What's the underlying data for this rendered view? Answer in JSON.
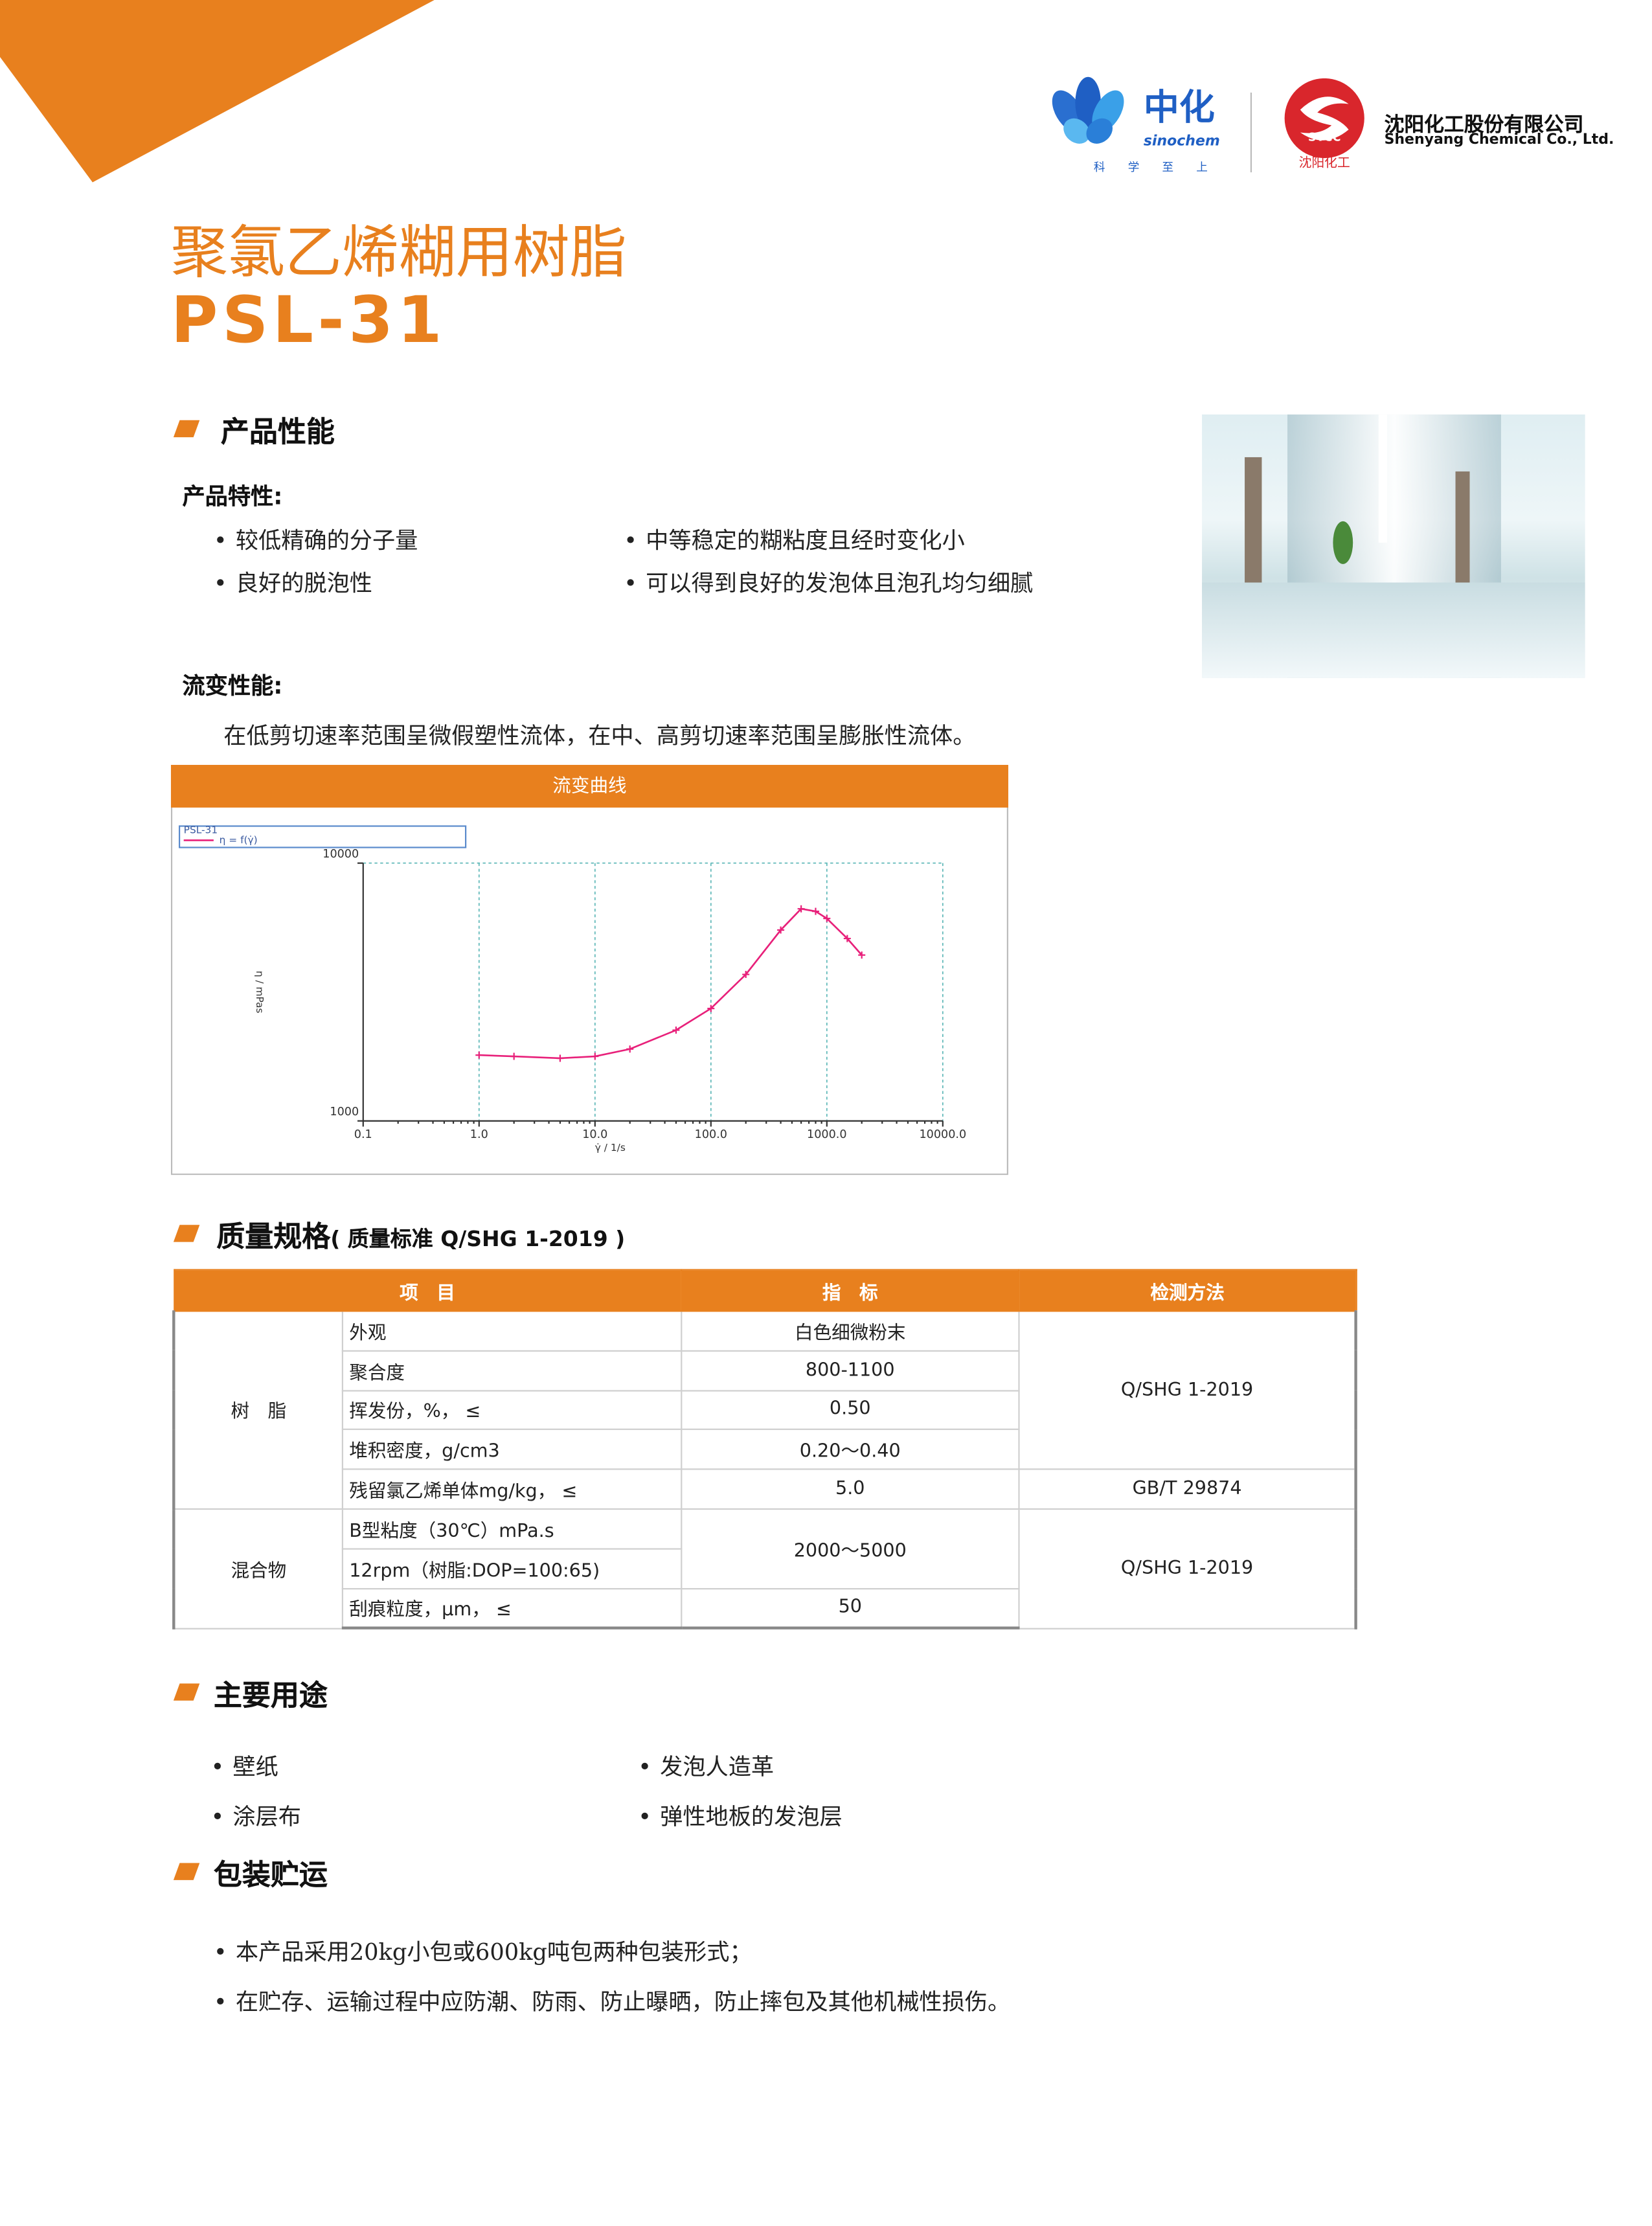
{
  "header": {
    "logo_cn": "中化",
    "logo_en": "sinochem",
    "slogan": [
      "科",
      "学",
      "至",
      "上"
    ],
    "sycc_badge": "SYCC",
    "sycc_cn": "沈阳化工",
    "company_cn": "沈阳化工股份有限公司",
    "company_en": "Shenyang Chemical Co., Ltd."
  },
  "title": "聚氯乙烯糊用树脂",
  "model": "PSL-31",
  "performance": {
    "heading": "产品性能",
    "features_title": "产品特性:",
    "features": [
      "较低精确的分子量",
      "中等稳定的糊粘度且经时变化小",
      "良好的脱泡性",
      "可以得到良好的发泡体且泡孔均匀细腻"
    ],
    "rheology_title": "流变性能:",
    "rheology_text": "在低剪切速率范围呈微假塑性流体，在中、高剪切速率范围呈膨胀性流体。"
  },
  "chart_data": {
    "type": "line",
    "title": "流变曲线",
    "legend_title": "PSL-31",
    "x_label": "γ̇ / 1/s",
    "y_label": "η / mPas",
    "x_log": true,
    "y_log": true,
    "grid": true,
    "xlim": [
      0.1,
      10000
    ],
    "ylim": [
      1000,
      10000
    ],
    "xticks": [
      0.1,
      {
        "value": 1,
        "label": "1.0"
      },
      {
        "value": 10,
        "label": "10.0"
      },
      {
        "value": 100,
        "label": "100.0"
      },
      {
        "value": 1000,
        "label": "1000.0"
      },
      {
        "value": 10000,
        "label": "10000.0"
      }
    ],
    "yticks": [
      1000,
      10000
    ],
    "x": [
      1,
      2,
      5,
      10,
      20,
      50,
      100,
      200,
      400,
      600,
      800,
      1000,
      1500,
      2000
    ],
    "series": [
      {
        "name": "η = f(γ̇)",
        "color": "#e8207a",
        "values": [
          1800,
          1780,
          1750,
          1780,
          1900,
          2250,
          2730,
          3700,
          5500,
          6650,
          6500,
          6100,
          5100,
          4400
        ]
      }
    ]
  },
  "quality": {
    "heading": "质量规格",
    "standard": "( 质量标准 Q/SHG 1-2019 )",
    "table": {
      "columns": [
        "项　目",
        "指　标",
        "检测方法"
      ],
      "groups": [
        "树　脂",
        "混合物"
      ],
      "items": [
        "外观",
        "聚合度",
        "挥发份，%，  ≤",
        "堆积密度，g/cm3",
        "残留氯乙烯单体mg/kg，  ≤",
        "B型粘度（30℃）mPa.s",
        "12rpm（树脂:DOP=100:65)",
        "刮痕粒度，μm，  ≤"
      ],
      "specs": [
        "白色细微粉末",
        "800-1100",
        "0.50",
        "0.20～0.40",
        "5.0",
        "2000～5000",
        "50"
      ],
      "methods": [
        "Q/SHG 1-2019",
        "GB/T 29874",
        "Q/SHG 1-2019"
      ]
    }
  },
  "uses": {
    "heading": "主要用途",
    "items": [
      "壁纸",
      "发泡人造革",
      "涂层布",
      "弹性地板的发泡层"
    ]
  },
  "packaging": {
    "heading": "包装贮运",
    "items": [
      "本产品采用20kg小包或600kg吨包两种包装形式；",
      "在贮存、运输过程中应防潮、防雨、防止曝晒，防止摔包及其他机械性损伤。"
    ]
  }
}
